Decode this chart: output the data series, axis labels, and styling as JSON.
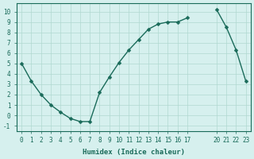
{
  "x": [
    0,
    1,
    2,
    3,
    4,
    5,
    6,
    7,
    8,
    9,
    10,
    11,
    12,
    13,
    14,
    15,
    16,
    17,
    20,
    21,
    22,
    23
  ],
  "y": [
    5,
    3.3,
    2,
    1,
    0.3,
    -0.3,
    -0.6,
    -0.6,
    2.2,
    3.7,
    5.1,
    6.3,
    7.3,
    8.3,
    8.8,
    9.0,
    9.0,
    9.4,
    10.2,
    8.5,
    6.3,
    3.3
  ],
  "line_color": "#1a6b5a",
  "bg_color": "#d6f0ee",
  "grid_color": "#b0d8d0",
  "xlabel": "Humidex (Indice chaleur)",
  "xticks": [
    0,
    1,
    2,
    3,
    4,
    5,
    6,
    7,
    8,
    9,
    10,
    11,
    12,
    13,
    14,
    15,
    16,
    17,
    20,
    21,
    22,
    23
  ],
  "xtick_labels": [
    "0",
    "1",
    "2",
    "3",
    "4",
    "5",
    "6",
    "7",
    "8",
    "9",
    "10",
    "11",
    "12",
    "13",
    "14",
    "15",
    "16",
    "17",
    "20",
    "21",
    "22",
    "23"
  ],
  "yticks": [
    -1,
    0,
    1,
    2,
    3,
    4,
    5,
    6,
    7,
    8,
    9,
    10
  ],
  "xlim": [
    -0.5,
    23.5
  ],
  "ylim": [
    -1.5,
    10.8
  ]
}
